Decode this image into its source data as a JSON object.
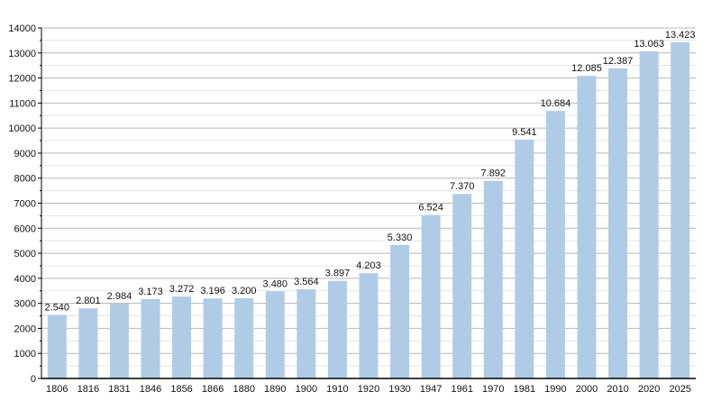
{
  "chart_data": {
    "type": "bar",
    "title": "",
    "xlabel": "",
    "ylabel": "",
    "ylim": [
      0,
      14000
    ],
    "yticks": [
      0,
      1000,
      2000,
      3000,
      4000,
      5000,
      6000,
      7000,
      8000,
      9000,
      10000,
      11000,
      12000,
      13000,
      14000
    ],
    "grid": true,
    "categories": [
      "1806",
      "1816",
      "1831",
      "1846",
      "1856",
      "1866",
      "1880",
      "1890",
      "1900",
      "1910",
      "1920",
      "1930",
      "1947",
      "1961",
      "1970",
      "1981",
      "1990",
      "2000",
      "2010",
      "2020",
      "2025"
    ],
    "values": [
      2540,
      2801,
      2984,
      3173,
      3272,
      3196,
      3200,
      3480,
      3564,
      3897,
      4203,
      5330,
      6524,
      7370,
      7892,
      9541,
      10684,
      12085,
      12387,
      13063,
      13423
    ],
    "data_labels": [
      "2.540",
      "2.801",
      "2.984",
      "3.173",
      "3.272",
      "3.196",
      "3.200",
      "3.480",
      "3.564",
      "3.897",
      "4.203",
      "5.330",
      "6.524",
      "7.370",
      "7.892",
      "9.541",
      "10.684",
      "12.085",
      "12.387",
      "13.063",
      "13.423"
    ],
    "colors": {
      "bar": "#b0cbe6",
      "grid_major": "#b8b8b8",
      "grid_minor": "#e4e4e4",
      "axis": "#000000"
    }
  }
}
